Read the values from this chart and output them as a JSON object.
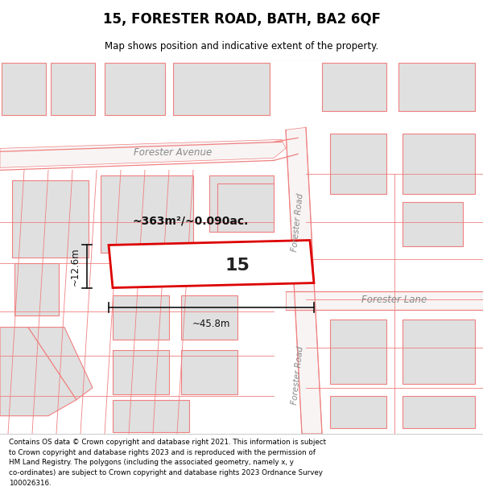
{
  "title": "15, FORESTER ROAD, BATH, BA2 6QF",
  "subtitle": "Map shows position and indicative extent of the property.",
  "footer": "Contains OS data © Crown copyright and database right 2021. This information is subject\nto Crown copyright and database rights 2023 and is reproduced with the permission of\nHM Land Registry. The polygons (including the associated geometry, namely x, y\nco-ordinates) are subject to Crown copyright and database rights 2023 Ordnance Survey\n100026316.",
  "map_bg": "#ffffff",
  "road_line_color": "#f08080",
  "plot_fill": "#ffffff",
  "plot_edge": "#dd0000",
  "building_fill": "#e0e0e0",
  "building_edge": "#f08080",
  "road_label_color": "#888888",
  "dim_color": "#111111",
  "area_text": "~363m²/~0.090ac.",
  "width_text": "~45.8m",
  "height_text": "~12.6m",
  "number_text": "15"
}
